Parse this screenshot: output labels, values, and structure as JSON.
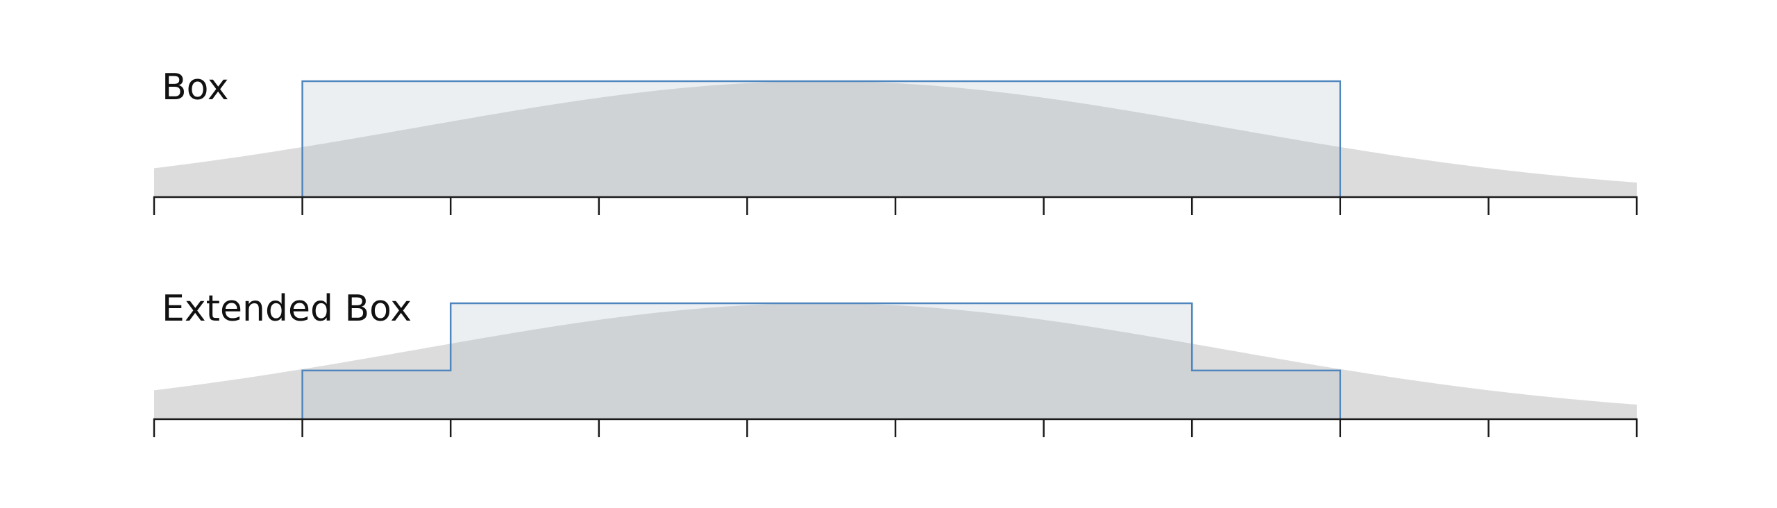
{
  "panels": [
    {
      "label": "Box",
      "kernel_type": "box",
      "ticks": [
        0,
        1,
        2,
        3,
        4,
        5,
        6,
        7,
        8,
        9,
        10
      ],
      "kernel_support": [
        1,
        8
      ],
      "kernel_steps": [
        {
          "x_start": 1,
          "x_end": 8,
          "level": 1.0
        }
      ]
    },
    {
      "label": "Extended Box",
      "kernel_type": "extended-box",
      "ticks": [
        0,
        1,
        2,
        3,
        4,
        5,
        6,
        7,
        8,
        9,
        10
      ],
      "kernel_support": [
        1,
        8
      ],
      "kernel_steps": [
        {
          "x_start": 1,
          "x_end": 2,
          "level": 0.42
        },
        {
          "x_start": 2,
          "x_end": 7,
          "level": 1.0
        },
        {
          "x_start": 7,
          "x_end": 8,
          "level": 0.42
        }
      ]
    }
  ],
  "colors": {
    "background": "#ffffff",
    "gaussian_fill": "#dcdcdc",
    "kernel_fill": "#a9b8c6",
    "kernel_stroke": "#4f86bd",
    "axis": "#1a1a1a",
    "label": "#111111"
  }
}
